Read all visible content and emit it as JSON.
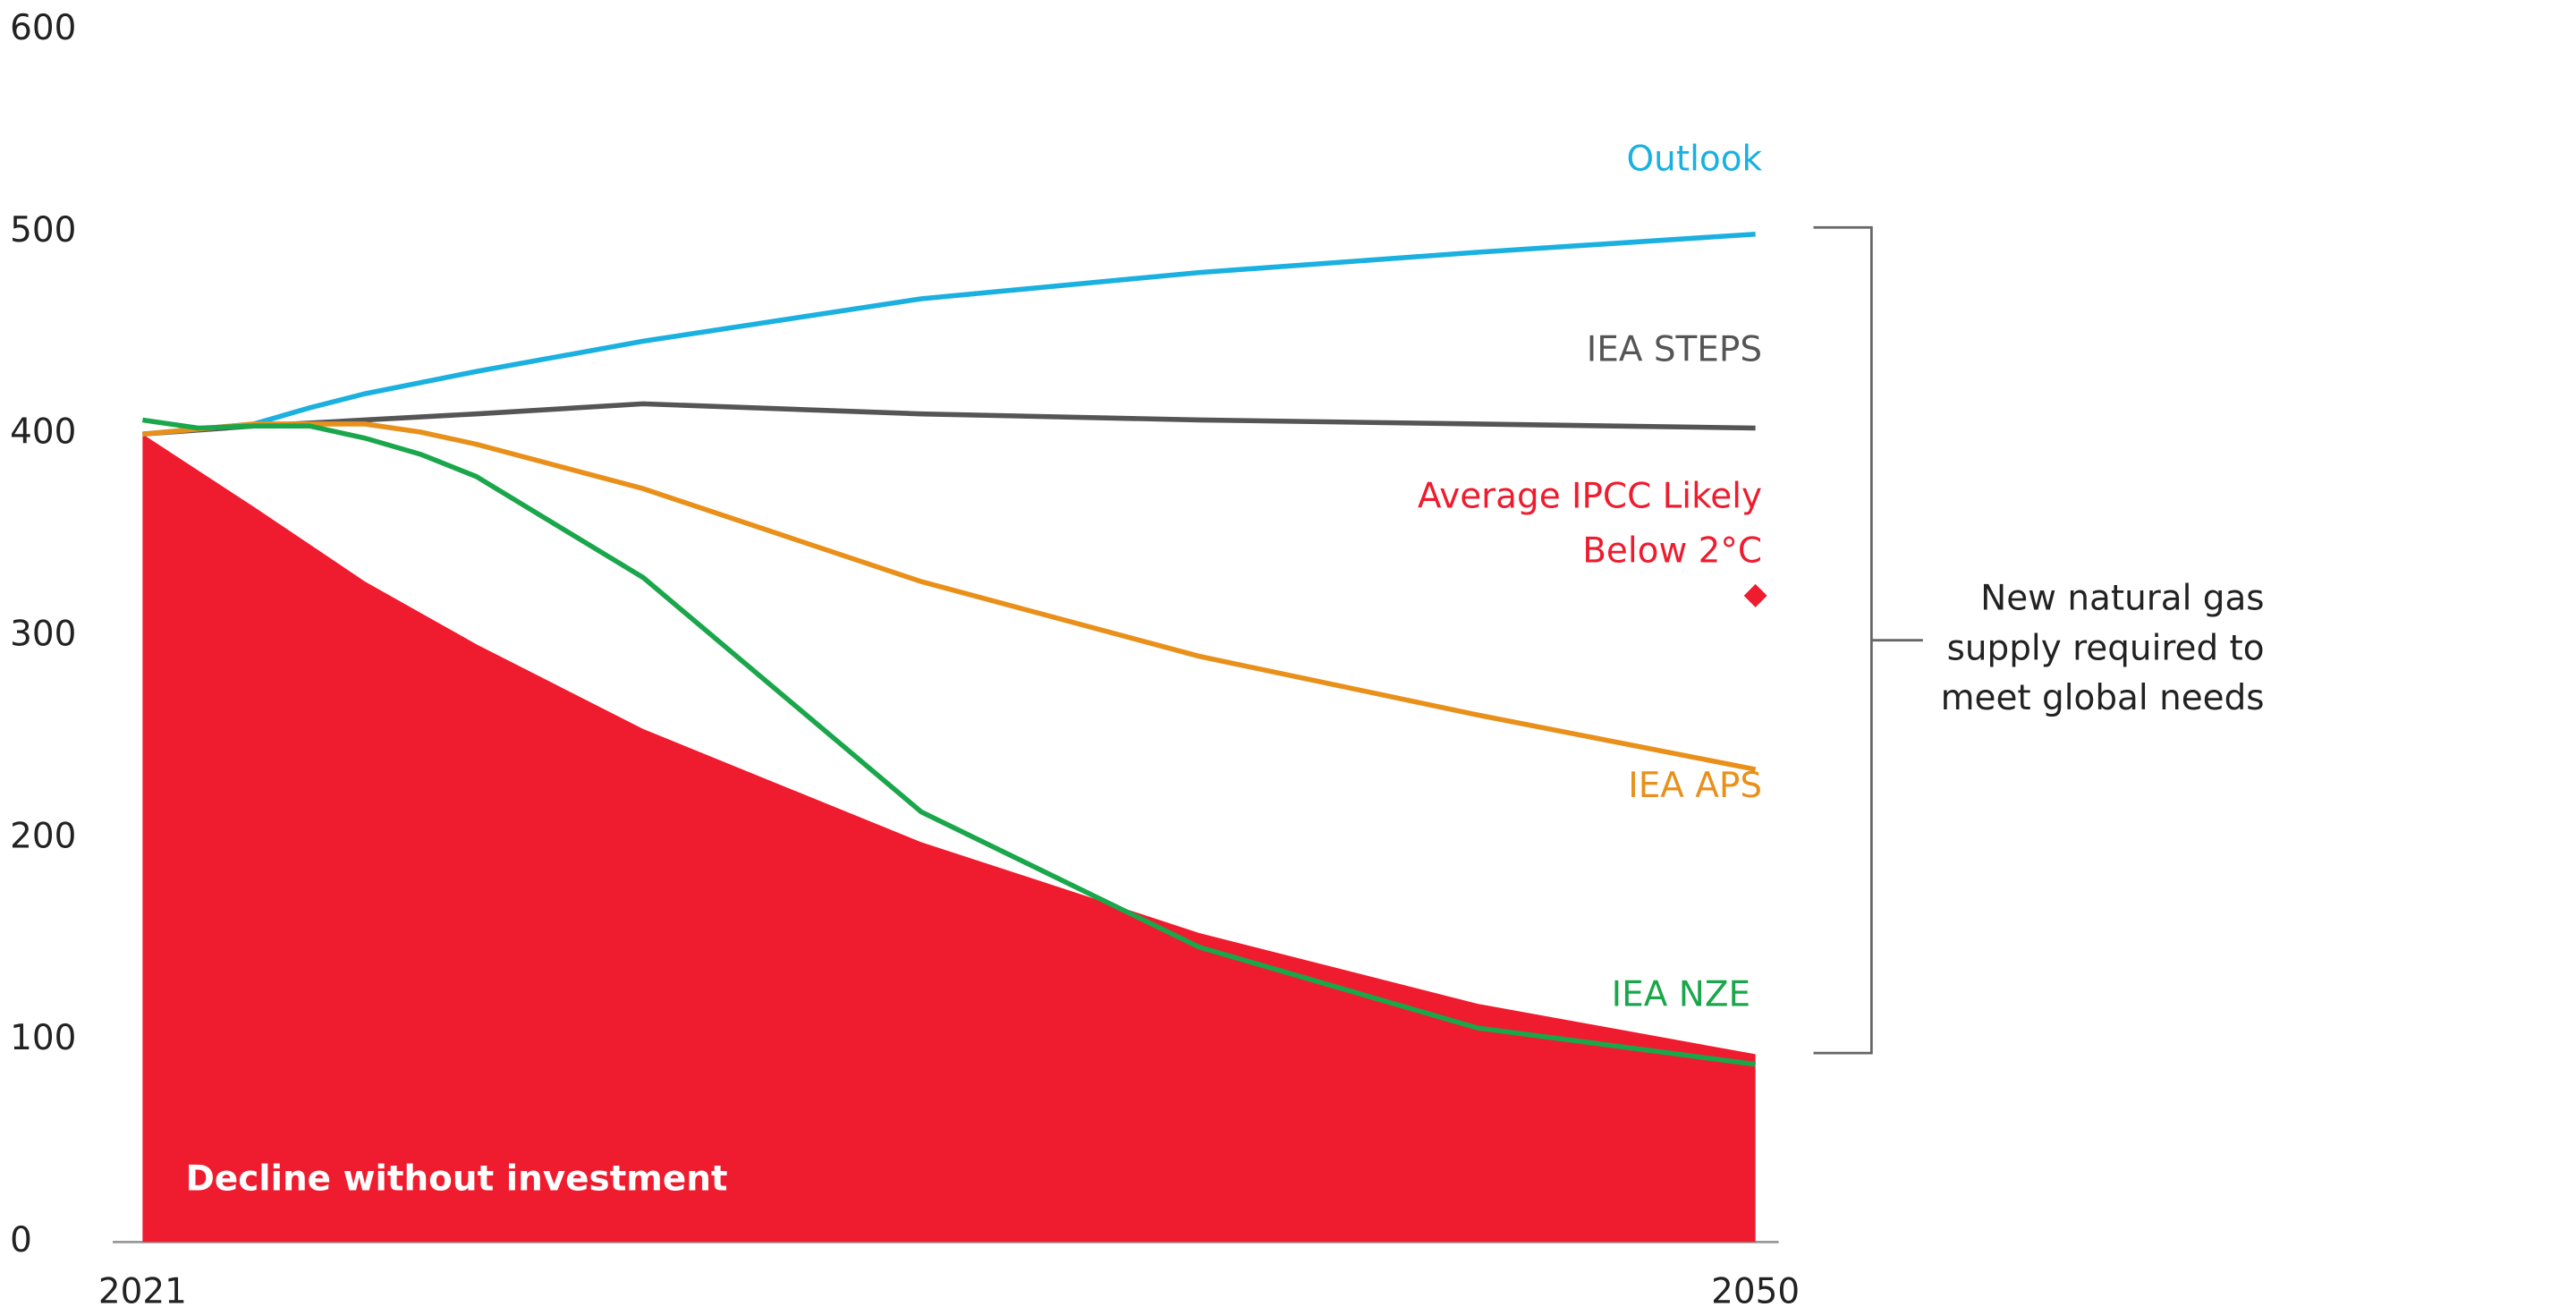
{
  "chart_data": {
    "type": "line",
    "xlim": [
      2021,
      2050
    ],
    "xticks": [
      2021,
      2050
    ],
    "ylim": [
      0,
      600
    ],
    "yticks": [
      0,
      100,
      200,
      300,
      400,
      500,
      600
    ],
    "grid": false,
    "area": {
      "name": "Decline without investment",
      "color": "#ee1c2e",
      "x": [
        2021,
        2023,
        2025,
        2027,
        2030,
        2035,
        2040,
        2045,
        2050
      ],
      "values": [
        400,
        364,
        327,
        296,
        254,
        198,
        153,
        118,
        93
      ]
    },
    "series": [
      {
        "name": "Outlook",
        "color": "#1ab0e0",
        "x": [
          2021,
          2023,
          2024,
          2025,
          2027,
          2030,
          2035,
          2040,
          2045,
          2050
        ],
        "values": [
          400,
          405,
          413,
          420,
          431,
          446,
          467,
          480,
          490,
          499
        ]
      },
      {
        "name": "IEA STEPS",
        "color": "#555555",
        "x": [
          2021,
          2023,
          2025,
          2027,
          2030,
          2035,
          2040,
          2045,
          2050
        ],
        "values": [
          400,
          404,
          407,
          410,
          415,
          410,
          407,
          405,
          403
        ]
      },
      {
        "name": "IEA APS",
        "color": "#e8901a",
        "x": [
          2021,
          2023,
          2025,
          2026,
          2027,
          2030,
          2035,
          2040,
          2045,
          2050
        ],
        "values": [
          400,
          405,
          405,
          401,
          395,
          373,
          327,
          290,
          261,
          234
        ]
      },
      {
        "name": "IEA NZE",
        "color": "#1aa64b",
        "x": [
          2021,
          2022,
          2023,
          2024,
          2025,
          2026,
          2027,
          2030,
          2035,
          2040,
          2045,
          2050
        ],
        "values": [
          407,
          403,
          404,
          404,
          398,
          390,
          379,
          329,
          213,
          146,
          106,
          88
        ]
      }
    ],
    "point": {
      "name": "Average IPCC Likely Below 2°C",
      "color": "#ee1c2e",
      "x": 2050,
      "value": 320
    },
    "bracket_label": [
      "New natural gas",
      "supply required to",
      "meet global needs"
    ]
  }
}
